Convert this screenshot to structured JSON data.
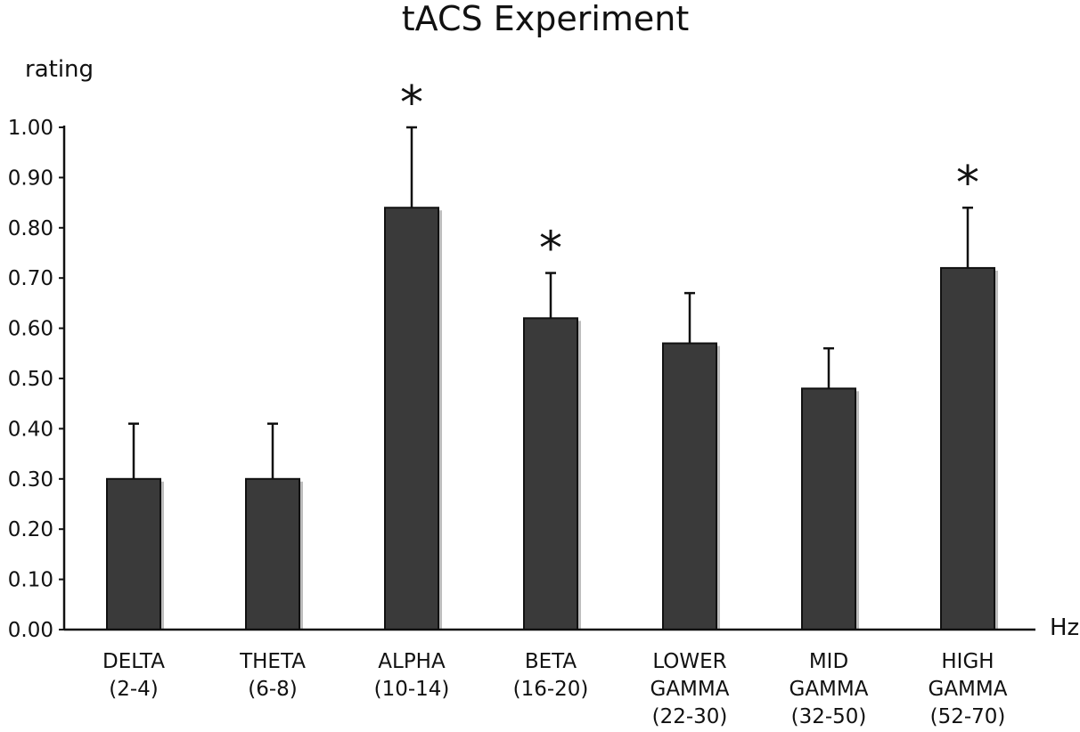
{
  "chart_data": {
    "type": "bar",
    "title": "tACS Experiment",
    "ylabel": "rating",
    "xlabel": "Hz",
    "ylim": [
      0,
      1.0
    ],
    "yticks": [
      "0.00",
      "0.10",
      "0.20",
      "0.30",
      "0.40",
      "0.50",
      "0.60",
      "0.70",
      "0.80",
      "0.90",
      "1.00"
    ],
    "categories": [
      [
        "DELTA",
        "(2-4)"
      ],
      [
        "THETA",
        "(6-8)"
      ],
      [
        "ALPHA",
        "(10-14)"
      ],
      [
        "BETA",
        "(16-20)"
      ],
      [
        "LOWER",
        "GAMMA",
        "(22-30)"
      ],
      [
        "MID",
        "GAMMA",
        "(32-50)"
      ],
      [
        "HIGH",
        "GAMMA",
        "(52-70)"
      ]
    ],
    "values": [
      0.3,
      0.3,
      0.84,
      0.62,
      0.57,
      0.48,
      0.72
    ],
    "error_upper": [
      0.41,
      0.41,
      1.0,
      0.71,
      0.67,
      0.56,
      0.84
    ],
    "significance": [
      "",
      "",
      "*",
      "*",
      "",
      "",
      "*"
    ],
    "grid": false,
    "colors": {
      "bar": "#3a3a3a",
      "bar_edge": "#111111",
      "shadow": "#bdbdbd",
      "axis": "#111111"
    }
  }
}
